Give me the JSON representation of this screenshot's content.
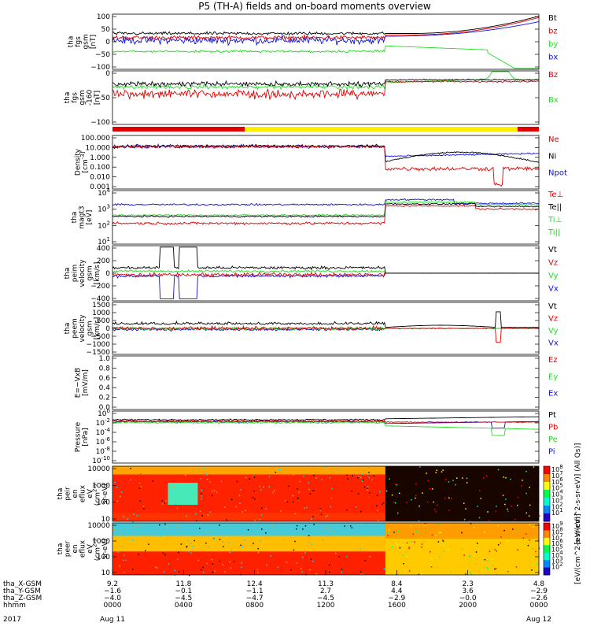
{
  "title": "P5 (TH-A) fields and on-board moments overview",
  "colors": {
    "black": "#000000",
    "red": "#e00000",
    "green": "#22dd22",
    "blue": "#1010e0",
    "yellow": "#ffee00"
  },
  "chart_data": [
    {
      "type": "line",
      "ylabel": [
        "tha",
        "fgs",
        "gsm",
        "[nT]"
      ],
      "ylim": [
        -100,
        100
      ],
      "yticks": [
        "100",
        "50",
        "0",
        "−50",
        "−100"
      ],
      "legend": [
        {
          "label": "Bt",
          "color": "#000000"
        },
        {
          "label": "bz",
          "color": "#e00000"
        },
        {
          "label": "by",
          "color": "#22dd22"
        },
        {
          "label": "bx",
          "color": "#1010e0"
        }
      ]
    },
    {
      "type": "line",
      "ylabel": [
        "tha",
        "fgs",
        "gsm",
        "-160",
        "[nT]"
      ],
      "ylim": [
        -125,
        25
      ],
      "yticks": [
        "0",
        "−50",
        "−100"
      ],
      "legend": [
        {
          "label": "Bz",
          "color": "#e00000"
        },
        {
          "label": "Bx",
          "color": "#22dd22"
        }
      ]
    },
    {
      "type": "line",
      "ylabel": [
        "Density",
        "[cm^-3]"
      ],
      "scale": "log",
      "yticks": [
        "100.000",
        "10.000",
        "1.000",
        "0.100",
        "0.010",
        "0.001"
      ],
      "legend": [
        {
          "label": "Ne",
          "color": "#e00000"
        },
        {
          "label": "Ni",
          "color": "#000000"
        },
        {
          "label": "Npot",
          "color": "#1010e0"
        }
      ]
    },
    {
      "type": "line",
      "ylabel": [
        "tha",
        "magt3",
        "[eV]"
      ],
      "scale": "log",
      "yticks": [
        "10^4",
        "10^3",
        "10^2",
        "10^1"
      ],
      "legend": [
        {
          "label": "Te⊥",
          "color": "#e00000"
        },
        {
          "label": "Te||",
          "color": "#000000"
        },
        {
          "label": "Ti⊥",
          "color": "#22dd22"
        },
        {
          "label": "Ti||",
          "color": "#22dd22"
        }
      ]
    },
    {
      "type": "line",
      "ylabel": [
        "tha",
        "peim",
        "velocity",
        "gsm",
        "[km/s]"
      ],
      "ylim": [
        -400,
        400
      ],
      "yticks": [
        "400",
        "200",
        "0",
        "−200",
        "−400"
      ],
      "legend": [
        {
          "label": "Vt",
          "color": "#000000"
        },
        {
          "label": "Vz",
          "color": "#e00000"
        },
        {
          "label": "Vy",
          "color": "#22dd22"
        },
        {
          "label": "Vx",
          "color": "#1010e0"
        }
      ]
    },
    {
      "type": "line",
      "ylabel": [
        "tha",
        "peem",
        "velocity",
        "gsm",
        "[km/s]"
      ],
      "ylim": [
        -1500,
        1500
      ],
      "yticks": [
        "1500",
        "1000",
        "500",
        "0",
        "−500",
        "−1000",
        "−1500"
      ],
      "legend": [
        {
          "label": "Vt",
          "color": "#000000"
        },
        {
          "label": "Vz",
          "color": "#e00000"
        },
        {
          "label": "Vy",
          "color": "#22dd22"
        },
        {
          "label": "Vx",
          "color": "#1010e0"
        }
      ]
    },
    {
      "type": "line",
      "ylabel": [
        "E=−VxB",
        "[mV/m]"
      ],
      "ylim": [
        0,
        1
      ],
      "yticks": [
        "1.0",
        "0.8",
        "0.6",
        "0.4",
        "0.2",
        "0.0"
      ],
      "legend": [
        {
          "label": "Ez",
          "color": "#e00000"
        },
        {
          "label": "Ey",
          "color": "#22dd22"
        },
        {
          "label": "Ex",
          "color": "#1010e0"
        }
      ]
    },
    {
      "type": "line",
      "ylabel": [
        "Pressure",
        "[nPa]"
      ],
      "scale": "log",
      "yticks": [
        "10^0",
        "10^-2",
        "10^-4",
        "10^-6",
        "10^-8",
        "10^-10"
      ],
      "legend": [
        {
          "label": "Pt",
          "color": "#000000"
        },
        {
          "label": "Pb",
          "color": "#e00000"
        },
        {
          "label": "Pe",
          "color": "#22dd22"
        },
        {
          "label": "Pi",
          "color": "#1010e0"
        }
      ]
    },
    {
      "type": "heatmap",
      "ylabel": [
        "tha",
        "peir",
        "en",
        "eflux",
        "eV",
        "(cm^2-s-",
        "sr-eV)"
      ],
      "yticks": [
        "10000",
        "1000",
        "100",
        "10"
      ],
      "colorbar_label": "[eV/(cm^2-s-sr-eV)] (All Qs)]",
      "colorbar_ticks": [
        "10^8",
        "10^7",
        "10^6",
        "10^5",
        "10^4",
        "10^3",
        "10^2",
        "10^1"
      ]
    },
    {
      "type": "heatmap",
      "ylabel": [
        "tha",
        "peer",
        "en",
        "eflux",
        "eV",
        "(cm^2-s-",
        "sr-eV)"
      ],
      "yticks": [
        "10000",
        "1000",
        "100",
        "10"
      ],
      "colorbar_label": "[eV/(cm^2-s-sr-eV)]",
      "colorbar_ticks": [
        "10^9",
        "10^8",
        "10^7",
        "10^6",
        "10^5",
        "10^4",
        "10^3",
        "10^2"
      ]
    }
  ],
  "xaxis": {
    "rows": [
      {
        "label": "tha_X-GSM",
        "values": [
          "9.2",
          "11.8",
          "12.4",
          "11.3",
          "8.4",
          "2.3",
          "4.8"
        ]
      },
      {
        "label": "tha_Y-GSM",
        "values": [
          "−1.6",
          "−0.1",
          "−1.1",
          "2.7",
          "4.4",
          "3.6",
          "−2.9"
        ]
      },
      {
        "label": "tha_Z-GSM",
        "values": [
          "−4.0",
          "−4.5",
          "−4.7",
          "−4.5",
          "−2.9",
          "−0.0",
          "−2.6"
        ]
      },
      {
        "label": "hhmm",
        "values": [
          "0000",
          "0400",
          "0800",
          "1200",
          "1600",
          "2000",
          "0000"
        ]
      }
    ],
    "year": "2017",
    "date_start": "Aug 11",
    "date_end": "Aug 12"
  }
}
